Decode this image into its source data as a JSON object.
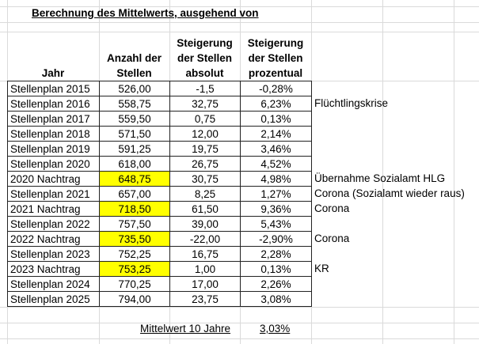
{
  "title": "Berechnung des Mittelwerts, ausgehend von",
  "headers": {
    "jahr": "Jahr",
    "anzahl": [
      "Anzahl der",
      "Stellen"
    ],
    "absolut": [
      "Steigerung",
      "der Stellen",
      "absolut"
    ],
    "prozentual": [
      "Steigerung",
      "der Stellen",
      "prozentual"
    ]
  },
  "rows": [
    {
      "jahr": "Stellenplan 2015",
      "anzahl": "526,00",
      "absolut": "-1,5",
      "prozent": "-0,28%",
      "note": "",
      "highlight": false
    },
    {
      "jahr": "Stellenplan 2016",
      "anzahl": "558,75",
      "absolut": "32,75",
      "prozent": "6,23%",
      "note": "Flüchtlingskrise",
      "highlight": false
    },
    {
      "jahr": "Stellenplan 2017",
      "anzahl": "559,50",
      "absolut": "0,75",
      "prozent": "0,13%",
      "note": "",
      "highlight": false
    },
    {
      "jahr": "Stellenplan 2018",
      "anzahl": "571,50",
      "absolut": "12,00",
      "prozent": "2,14%",
      "note": "",
      "highlight": false
    },
    {
      "jahr": "Stellenplan 2019",
      "anzahl": "591,25",
      "absolut": "19,75",
      "prozent": "3,46%",
      "note": "",
      "highlight": false
    },
    {
      "jahr": "Stellenplan 2020",
      "anzahl": "618,00",
      "absolut": "26,75",
      "prozent": "4,52%",
      "note": "",
      "highlight": false
    },
    {
      "jahr": "2020 Nachtrag",
      "anzahl": "648,75",
      "absolut": "30,75",
      "prozent": "4,98%",
      "note": "Übernahme Sozialamt HLG",
      "highlight": true
    },
    {
      "jahr": "Stellenplan 2021",
      "anzahl": "657,00",
      "absolut": "8,25",
      "prozent": "1,27%",
      "note": "Corona (Sozialamt wieder raus)",
      "highlight": false
    },
    {
      "jahr": "2021 Nachtrag",
      "anzahl": "718,50",
      "absolut": "61,50",
      "prozent": "9,36%",
      "note": "Corona",
      "highlight": true
    },
    {
      "jahr": "Stellenplan 2022",
      "anzahl": "757,50",
      "absolut": "39,00",
      "prozent": "5,43%",
      "note": "",
      "highlight": false
    },
    {
      "jahr": "2022 Nachtrag",
      "anzahl": "735,50",
      "absolut": "-22,00",
      "prozent": "-2,90%",
      "note": "Corona",
      "highlight": true
    },
    {
      "jahr": "Stellenplan 2023",
      "anzahl": "752,25",
      "absolut": "16,75",
      "prozent": "2,28%",
      "note": "",
      "highlight": false
    },
    {
      "jahr": "2023 Nachtrag",
      "anzahl": "753,25",
      "absolut": "1,00",
      "prozent": "0,13%",
      "note": "KR",
      "highlight": true
    },
    {
      "jahr": "Stellenplan 2024",
      "anzahl": "770,25",
      "absolut": "17,00",
      "prozent": "2,26%",
      "note": "",
      "highlight": false
    },
    {
      "jahr": "Stellenplan 2025",
      "anzahl": "794,00",
      "absolut": "23,75",
      "prozent": "3,08%",
      "note": "",
      "highlight": false
    }
  ],
  "summary": {
    "label": "Mittelwert 10 Jahre",
    "value": "3,03%"
  },
  "colors": {
    "highlight": "#ffff00"
  }
}
